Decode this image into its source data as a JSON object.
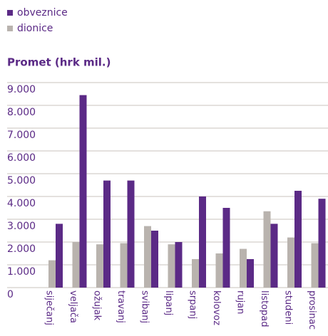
{
  "chart_data": {
    "type": "bar",
    "title": "Promet (hrk mil.)",
    "categories": [
      "siječanj",
      "veljača",
      "ožujak",
      "travanj",
      "svibanj",
      "lipanj",
      "srpanj",
      "kolovoz",
      "rujan",
      "listopad",
      "studeni",
      "prosinac"
    ],
    "series": [
      {
        "name": "obveznice",
        "color": "#5b2a86",
        "values": [
          2800,
          8450,
          4700,
          4700,
          2500,
          2000,
          4000,
          3500,
          1250,
          2800,
          4250,
          3900
        ]
      },
      {
        "name": "dionice",
        "color": "#b9b3ae",
        "values": [
          1200,
          2000,
          1900,
          1950,
          2700,
          1900,
          1250,
          1500,
          1700,
          3350,
          2200,
          1950
        ]
      }
    ],
    "ylim": [
      0,
      9000
    ],
    "yticks": [
      0,
      {
        "value": 1000,
        "label": "1.000"
      },
      {
        "value": 2000,
        "label": "2.000"
      },
      {
        "value": 3000,
        "label": "3.000"
      },
      {
        "value": 4000,
        "label": "4.000"
      },
      {
        "value": 5000,
        "label": "5.000"
      },
      {
        "value": 6000,
        "label": "6.000"
      },
      {
        "value": 7000,
        "label": "7.000"
      },
      {
        "value": 8000,
        "label": "8.000"
      },
      {
        "value": 9000,
        "label": "9.000"
      }
    ],
    "grid": true
  }
}
